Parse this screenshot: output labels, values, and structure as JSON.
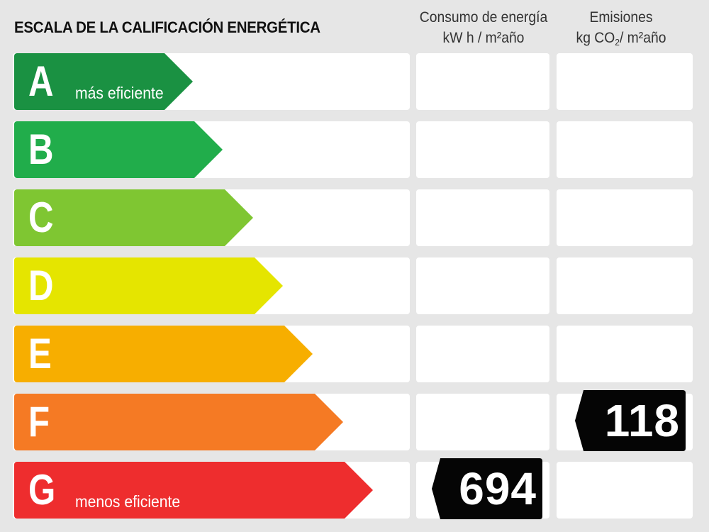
{
  "title": "ESCALA DE LA CALIFICACIÓN ENERGÉTICA",
  "columns": {
    "consumo": {
      "line1": "Consumo de energía",
      "line2": "kW h / m²año"
    },
    "emisiones": {
      "line1": "Emisiones",
      "line2_pre": "kg CO",
      "line2_sub": "2",
      "line2_post": "/ m²año"
    }
  },
  "chart_data": {
    "type": "table",
    "title": "ESCALA DE LA CALIFICACIÓN ENERGÉTICA",
    "classes": [
      {
        "letter": "A",
        "sublabel": "más eficiente",
        "color": "#1a9142"
      },
      {
        "letter": "B",
        "sublabel": "",
        "color": "#21ad4b"
      },
      {
        "letter": "C",
        "sublabel": "",
        "color": "#7fc632"
      },
      {
        "letter": "D",
        "sublabel": "",
        "color": "#e5e500"
      },
      {
        "letter": "E",
        "sublabel": "",
        "color": "#f7ae00"
      },
      {
        "letter": "F",
        "sublabel": "",
        "color": "#f57a24"
      },
      {
        "letter": "G",
        "sublabel": "menos eficiente",
        "color": "#ee2d2e"
      }
    ],
    "consumo": {
      "label": "Consumo de energía",
      "unit": "kW h / m²año",
      "class": "G",
      "value": "694"
    },
    "emisiones": {
      "label": "Emisiones",
      "unit": "kg CO2/ m²año",
      "class": "F",
      "value": "118"
    }
  }
}
